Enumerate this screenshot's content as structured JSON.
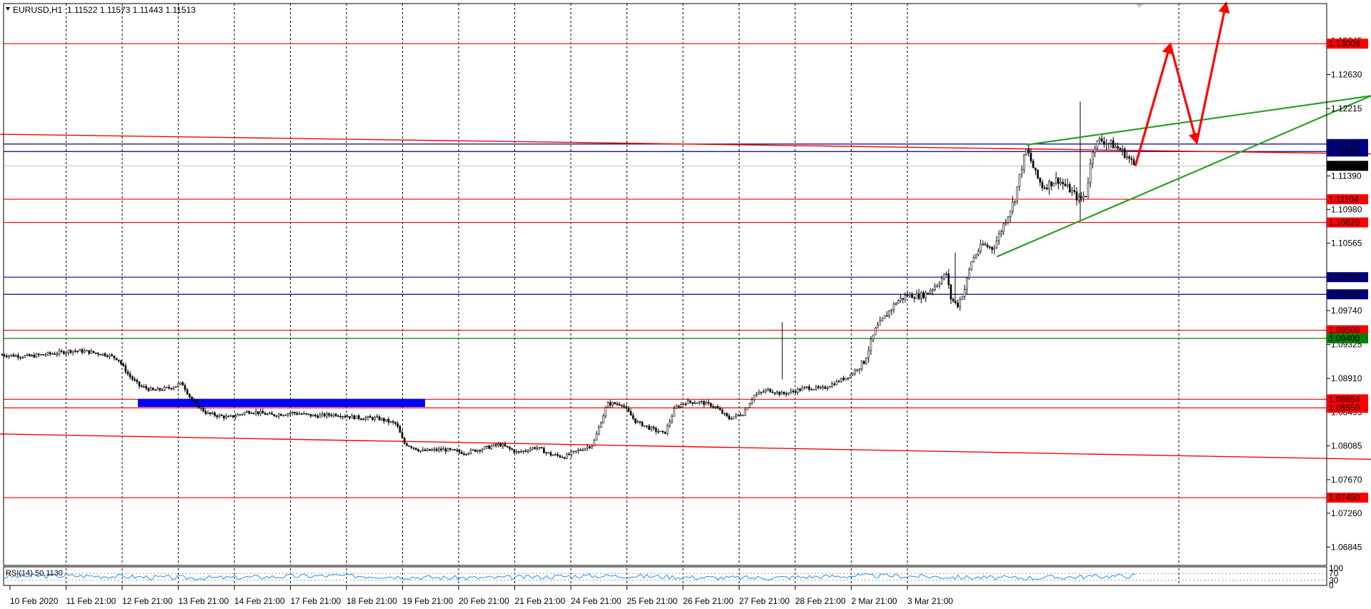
{
  "header": {
    "symbol": "EURUSD,H1",
    "ohlc": "1.11522 1.11573 1.11443 1.11513"
  },
  "rsi": {
    "label": "RSI(14) 50.1130",
    "scale_labels": [
      "100",
      "70",
      "30",
      "0"
    ]
  },
  "colors": {
    "red": "#ff0000",
    "blue": "#000080",
    "green": "#008000",
    "trend_green": "#2aa02a",
    "arrow_red": "#ff0000",
    "zone_blue": "#0000ff",
    "rsi_line": "#1e90ff",
    "grid": "#000000",
    "candle": "#000000"
  },
  "chart_data": {
    "type": "candlestick",
    "symbol": "EURUSD",
    "timeframe": "H1",
    "x_labels": [
      "10 Feb 2020",
      "11 Feb 21:00",
      "12 Feb 21:00",
      "13 Feb 21:00",
      "14 Feb 21:00",
      "17 Feb 21:00",
      "18 Feb 21:00",
      "19 Feb 21:00",
      "20 Feb 21:00",
      "21 Feb 21:00",
      "24 Feb 21:00",
      "25 Feb 21:00",
      "26 Feb 21:00",
      "27 Feb 21:00",
      "28 Feb 21:00",
      "2 Mar 21:00",
      "3 Mar 21:00"
    ],
    "y_ticks": [
      "1.13045",
      "1.12630",
      "1.12215",
      "1.11800",
      "1.11390",
      "1.10980",
      "1.10565",
      "1.10150",
      "1.09740",
      "1.09325",
      "1.08910",
      "1.08495",
      "1.08085",
      "1.07670",
      "1.07260",
      "1.06845"
    ],
    "ylim": [
      1.0662,
      1.135
    ],
    "horizontal_levels": [
      {
        "price": 1.13009,
        "label": "1.13009",
        "color": "red"
      },
      {
        "price": 1.1178,
        "label": "1.11780",
        "color": "blue"
      },
      {
        "price": 1.11688,
        "label": "1.11688",
        "color": "blue"
      },
      {
        "price": 1.11104,
        "label": "1.11104",
        "color": "red"
      },
      {
        "price": 1.1082,
        "label": "1.10820",
        "color": "red"
      },
      {
        "price": 1.1015,
        "label": "1.10150",
        "color": "blue"
      },
      {
        "price": 1.0994,
        "label": "1.09940",
        "color": "blue"
      },
      {
        "price": 1.095,
        "label": "1.09500",
        "color": "red"
      },
      {
        "price": 1.094,
        "label": "1.09400",
        "color": "green"
      },
      {
        "price": 1.08654,
        "label": "1.08654",
        "color": "red"
      },
      {
        "price": 1.0855,
        "label": "1.08550",
        "color": "red"
      },
      {
        "price": 1.0745,
        "label": "1.07450",
        "color": "red"
      }
    ],
    "current_price": {
      "price": 1.11513,
      "label": "1.11513"
    },
    "sloped_lines": [
      {
        "color": "red",
        "points": [
          [
            0,
            1.119
          ],
          [
            1919,
            1.1166
          ]
        ]
      },
      {
        "color": "red",
        "points": [
          [
            0,
            1.0823
          ],
          [
            1919,
            1.0792
          ]
        ]
      }
    ],
    "trendlines": [
      {
        "color": "trend_green",
        "points": [
          [
            1437,
            1.1177
          ],
          [
            1919,
            1.1237
          ]
        ]
      },
      {
        "color": "trend_green",
        "points": [
          [
            1395,
            1.104
          ],
          [
            1919,
            1.1237
          ]
        ]
      }
    ],
    "arrows": [
      {
        "color": "arrow_red",
        "points": [
          [
            1589,
            1.1151
          ],
          [
            1638,
            1.13
          ],
          [
            1675,
            1.118
          ],
          [
            1716,
            1.135
          ]
        ]
      }
    ],
    "zones": [
      {
        "color": "zone_blue",
        "x": [
          193,
          595
        ],
        "y": [
          1.0856,
          1.0866
        ]
      }
    ],
    "price_path": [
      [
        0,
        1.092
      ],
      [
        40,
        1.0918
      ],
      [
        80,
        1.0922
      ],
      [
        100,
        1.0925
      ],
      [
        120,
        1.0924
      ],
      [
        150,
        1.092
      ],
      [
        165,
        1.0915
      ],
      [
        180,
        1.0895
      ],
      [
        195,
        1.0882
      ],
      [
        215,
        1.0876
      ],
      [
        240,
        1.088
      ],
      [
        255,
        1.0885
      ],
      [
        270,
        1.0862
      ],
      [
        290,
        1.0848
      ],
      [
        320,
        1.0843
      ],
      [
        350,
        1.0851
      ],
      [
        380,
        1.0846
      ],
      [
        410,
        1.0849
      ],
      [
        440,
        1.0845
      ],
      [
        470,
        1.0847
      ],
      [
        500,
        1.0843
      ],
      [
        530,
        1.0842
      ],
      [
        555,
        1.0835
      ],
      [
        565,
        1.0812
      ],
      [
        590,
        1.0802
      ],
      [
        620,
        1.0804
      ],
      [
        650,
        1.08
      ],
      [
        680,
        1.0806
      ],
      [
        700,
        1.081
      ],
      [
        725,
        1.08
      ],
      [
        750,
        1.0807
      ],
      [
        770,
        1.0798
      ],
      [
        790,
        1.0795
      ],
      [
        810,
        1.0803
      ],
      [
        830,
        1.081
      ],
      [
        850,
        1.086
      ],
      [
        870,
        1.086
      ],
      [
        890,
        1.0838
      ],
      [
        910,
        1.083
      ],
      [
        930,
        1.0823
      ],
      [
        945,
        1.0855
      ],
      [
        960,
        1.0862
      ],
      [
        980,
        1.0862
      ],
      [
        1000,
        1.0857
      ],
      [
        1020,
        1.0842
      ],
      [
        1040,
        1.0848
      ],
      [
        1055,
        1.087
      ],
      [
        1075,
        1.0877
      ],
      [
        1095,
        1.0872
      ],
      [
        1110,
        1.0875
      ],
      [
        1130,
        1.088
      ],
      [
        1150,
        1.0878
      ],
      [
        1170,
        1.0886
      ],
      [
        1190,
        1.0895
      ],
      [
        1210,
        1.0912
      ],
      [
        1225,
        1.095
      ],
      [
        1240,
        1.0968
      ],
      [
        1255,
        1.0985
      ],
      [
        1270,
        1.0993
      ],
      [
        1285,
        1.0992
      ],
      [
        1295,
        1.0994
      ],
      [
        1310,
        1.1005
      ],
      [
        1325,
        1.102
      ],
      [
        1330,
        1.099
      ],
      [
        1340,
        1.098
      ],
      [
        1350,
        1.1
      ],
      [
        1360,
        1.1035
      ],
      [
        1375,
        1.1055
      ],
      [
        1390,
        1.105
      ],
      [
        1400,
        1.107
      ],
      [
        1410,
        1.109
      ],
      [
        1420,
        1.111
      ],
      [
        1430,
        1.115
      ],
      [
        1437,
        1.1172
      ],
      [
        1450,
        1.114
      ],
      [
        1460,
        1.1125
      ],
      [
        1480,
        1.1135
      ],
      [
        1500,
        1.112
      ],
      [
        1510,
        1.111
      ],
      [
        1520,
        1.1116
      ],
      [
        1530,
        1.1175
      ],
      [
        1540,
        1.1183
      ],
      [
        1555,
        1.1178
      ],
      [
        1570,
        1.117
      ],
      [
        1589,
        1.1151
      ]
    ]
  }
}
